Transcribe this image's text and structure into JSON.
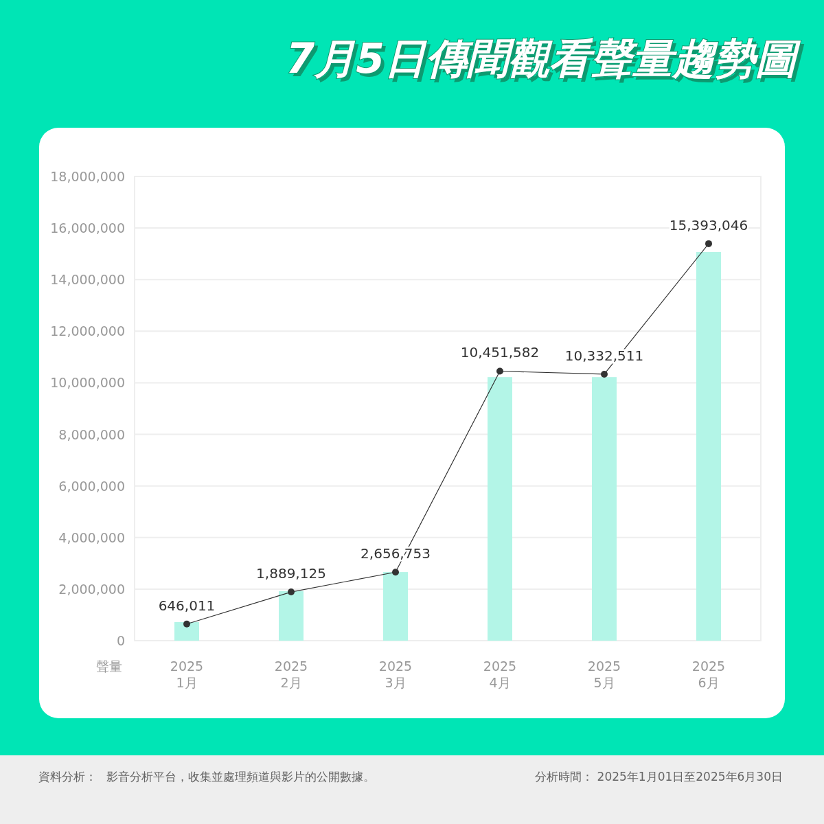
{
  "chart_data": {
    "type": "bar",
    "title": "7月5日傳聞觀看聲量趨勢圖",
    "ylabel": "聲量",
    "categories": [
      "2025\n1月",
      "2025\n2月",
      "2025\n3月",
      "2025\n4月",
      "2025\n5月",
      "2025\n6月"
    ],
    "series": [
      {
        "color": "#b3f5e7",
        "values": [
          720000,
          1920000,
          2660000,
          10220000,
          10220000,
          15070000
        ]
      },
      {
        "type": "line",
        "color": "#333333",
        "marker": "circle",
        "values": [
          646011,
          1889125,
          2656753,
          10451582,
          10332511,
          15393046
        ],
        "value_labels": [
          "646,011",
          "1,889,125",
          "2,656,753",
          "10,451,582",
          "10,332,511",
          "15,393,046"
        ]
      }
    ],
    "ylim": [
      0,
      18000000
    ],
    "yticks": [
      {
        "value": 0,
        "label": "0"
      },
      {
        "value": 2000000,
        "label": "2,000,000"
      },
      {
        "value": 4000000,
        "label": "4,000,000"
      },
      {
        "value": 6000000,
        "label": "6,000,000"
      },
      {
        "value": 8000000,
        "label": "8,000,000"
      },
      {
        "value": 10000000,
        "label": "10,000,000"
      },
      {
        "value": 12000000,
        "label": "12,000,000"
      },
      {
        "value": 14000000,
        "label": "14,000,000"
      },
      {
        "value": 16000000,
        "label": "16,000,000"
      },
      {
        "value": 18000000,
        "label": "18,000,000"
      }
    ],
    "grid": "y",
    "annotations": [
      "資料分析：",
      "影音分析平台，收集並處理頻道與影片的公開數據。",
      "分析時間： 2025年1月01日至2025年6月30日"
    ]
  }
}
